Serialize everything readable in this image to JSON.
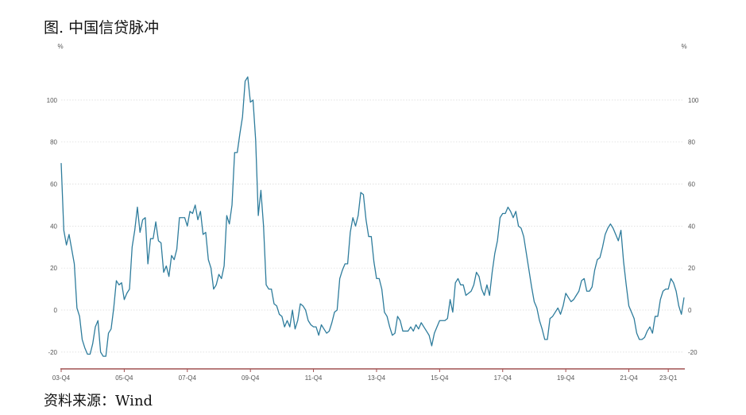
{
  "title": "图. 中国信贷脉冲",
  "source": "资料来源：Wind",
  "chart_data": {
    "type": "line",
    "y_unit_left": "%",
    "y_unit_right": "%",
    "ylim": [
      -28,
      120
    ],
    "y_ticks": [
      -20,
      0,
      20,
      40,
      60,
      80,
      100
    ],
    "x_ticks": [
      "03-Q4",
      "05-Q4",
      "07-Q4",
      "09-Q4",
      "11-Q4",
      "13-Q4",
      "15-Q4",
      "17-Q4",
      "19-Q4",
      "21-Q4",
      "23-Q1"
    ],
    "x_tick_positions": [
      0,
      24,
      48,
      72,
      96,
      120,
      144,
      168,
      192,
      216,
      231
    ],
    "grid": "horizontal-dotted",
    "line_color": "#2e7c9c",
    "series": [
      {
        "values": [
          70,
          38,
          31,
          36,
          29,
          22,
          1,
          -3,
          -14,
          -18,
          -21,
          -21,
          -16,
          -8,
          -5,
          -20,
          -22,
          -22,
          -11,
          -9,
          1,
          14,
          12,
          13,
          5,
          8,
          10,
          30,
          38,
          49,
          37,
          43,
          44,
          22,
          34,
          34,
          42,
          33,
          32,
          18,
          21,
          16,
          26,
          24,
          29,
          44,
          44,
          44,
          40,
          47,
          46,
          50,
          43,
          47,
          36,
          37,
          24,
          20,
          10,
          12,
          17,
          15,
          21,
          45,
          41,
          50,
          75,
          75,
          84,
          92,
          109,
          111,
          99,
          100,
          81,
          45,
          57,
          40,
          12,
          10,
          10,
          3,
          2,
          -2,
          -3,
          -8,
          -5,
          -8,
          0,
          -9,
          -5,
          3,
          2,
          0,
          -5,
          -7,
          -8,
          -8,
          -12,
          -7,
          -9,
          -11,
          -10,
          -6,
          -1,
          0,
          15,
          19,
          22,
          22,
          37,
          44,
          40,
          45,
          56,
          55,
          43,
          35,
          35,
          23,
          15,
          15,
          10,
          -1,
          -3,
          -8,
          -12,
          -11,
          -3,
          -5,
          -10,
          -10,
          -10,
          -8,
          -10,
          -7,
          -9,
          -6,
          -8,
          -10,
          -12,
          -17,
          -11,
          -8,
          -5,
          -5,
          -5,
          -4,
          5,
          -1,
          13,
          15,
          12,
          12,
          7,
          8,
          9,
          12,
          18,
          16,
          10,
          7,
          12,
          7,
          18,
          27,
          33,
          44,
          46,
          46,
          49,
          47,
          44,
          47,
          40,
          39,
          35,
          27,
          19,
          11,
          4,
          1,
          -5,
          -9,
          -14,
          -14,
          -4,
          -3,
          -1,
          1,
          -2,
          2,
          8,
          6,
          4,
          5,
          7,
          9,
          14,
          15,
          9,
          9,
          11,
          19,
          24,
          25,
          30,
          36,
          39,
          41,
          39,
          36,
          33,
          38,
          23,
          12,
          2,
          -1,
          -4,
          -11,
          -14,
          -14,
          -13,
          -10,
          -8,
          -11,
          -3,
          -3,
          5,
          9,
          10,
          10,
          15,
          13,
          9,
          2,
          -2,
          6
        ]
      }
    ]
  }
}
